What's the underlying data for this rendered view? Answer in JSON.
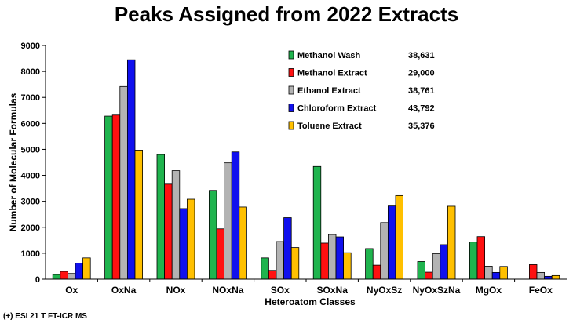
{
  "chart_data": {
    "type": "bar",
    "title": "Peaks Assigned from 2022 Extracts",
    "xlabel": "Heteroatom Classes",
    "ylabel": "Number of Molecular Formulas",
    "ylim": [
      0,
      9000
    ],
    "yticks": [
      0,
      1000,
      2000,
      3000,
      4000,
      5000,
      6000,
      7000,
      8000,
      9000
    ],
    "grid": false,
    "legend_position": "top-right",
    "categories": [
      "Ox",
      "OxNa",
      "NOx",
      "NOxNa",
      "SOx",
      "SOxNa",
      "NyOxSz",
      "NyOxSzNa",
      "MgOx",
      "FeOx"
    ],
    "series": [
      {
        "name": "Methanol Wash",
        "total": "38,631",
        "color": "#1fb44e",
        "values": [
          180,
          6280,
          4800,
          3420,
          820,
          4340,
          1180,
          680,
          1430,
          0
        ]
      },
      {
        "name": "Methanol Extract",
        "total": "29,000",
        "color": "#ff1010",
        "values": [
          300,
          6320,
          3660,
          1940,
          340,
          1390,
          540,
          270,
          1640,
          560
        ]
      },
      {
        "name": "Ethanol Extract",
        "total": "38,761",
        "color": "#b3b3b3",
        "values": [
          220,
          7420,
          4180,
          4480,
          1450,
          1720,
          2180,
          980,
          500,
          260
        ]
      },
      {
        "name": "Chloroform Extract",
        "total": "43,792",
        "color": "#1010ee",
        "values": [
          620,
          8450,
          2720,
          4900,
          2370,
          1630,
          2820,
          1330,
          260,
          110
        ]
      },
      {
        "name": "Toluene Extract",
        "total": "35,376",
        "color": "#ffc000",
        "values": [
          820,
          4970,
          3080,
          2780,
          1220,
          1020,
          3220,
          2810,
          490,
          140
        ]
      }
    ]
  },
  "footer": {
    "note": "(+) ESI 21 T FT-ICR MS"
  }
}
